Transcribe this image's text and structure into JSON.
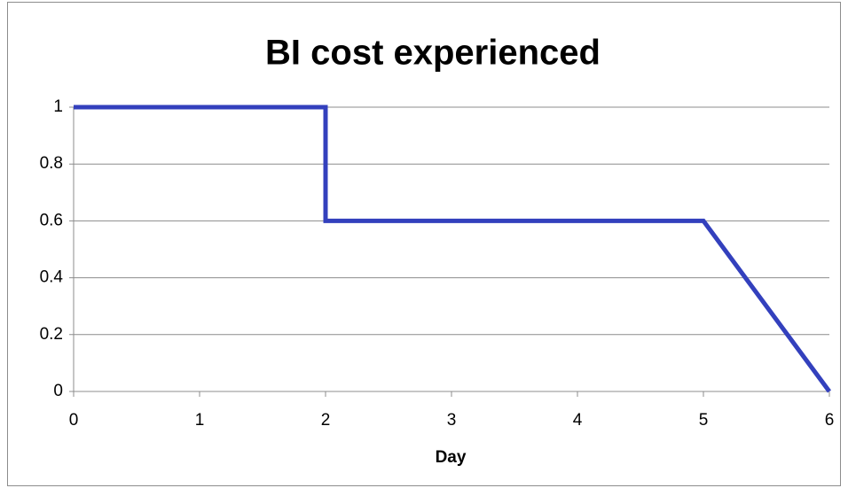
{
  "chart_data": {
    "type": "line",
    "title": "BI cost experienced",
    "x_label": "Day",
    "x": [
      0,
      2,
      2,
      5,
      6
    ],
    "values": [
      1,
      1,
      0.6,
      0.6,
      0
    ],
    "color": "#3340bd",
    "xlim": [
      0,
      6
    ],
    "xticks": [
      0,
      1,
      2,
      3,
      4,
      5,
      6
    ],
    "ylim": [
      0,
      1
    ],
    "yticks": [
      0,
      0.2,
      0.4,
      0.6,
      0.8,
      1
    ],
    "grid": true
  }
}
